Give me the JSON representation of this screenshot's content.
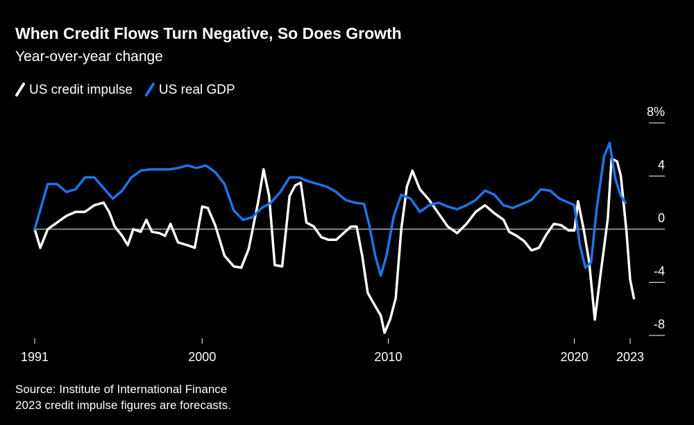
{
  "chart_data": {
    "type": "line",
    "title": "When Credit Flows Turn Negative, So Does Growth",
    "subtitle": "Year-over-year change",
    "source": "Source: Institute of International Finance",
    "note": "2023 credit impulse figures are forecasts.",
    "xlim": [
      1991,
      2023.2
    ],
    "xticks": [
      1991,
      2000,
      2010,
      2020,
      2023
    ],
    "ylim": [
      -8,
      8
    ],
    "yticks": [
      {
        "value": 8,
        "label": "8%"
      },
      4,
      0,
      -4,
      -8
    ],
    "series": [
      {
        "name": "US credit impulse",
        "color": "#ffffff",
        "x": [
          1991.0,
          1991.3,
          1991.7,
          1992.2,
          1992.7,
          1993.2,
          1993.7,
          1994.2,
          1994.7,
          1995.0,
          1995.3,
          1995.7,
          1996.0,
          1996.3,
          1996.7,
          1997.0,
          1997.3,
          1997.7,
          1998.0,
          1998.3,
          1998.7,
          1999.2,
          1999.6,
          2000.0,
          2000.3,
          2000.7,
          2001.2,
          2001.7,
          2002.1,
          2002.5,
          2003.0,
          2003.3,
          2003.6,
          2003.9,
          2004.3,
          2004.7,
          2005.0,
          2005.3,
          2005.6,
          2006.0,
          2006.4,
          2006.8,
          2007.2,
          2007.6,
          2008.0,
          2008.3,
          2008.6,
          2008.9,
          2009.3,
          2009.6,
          2009.8,
          2010.1,
          2010.4,
          2010.7,
          2011.0,
          2011.3,
          2011.7,
          2012.2,
          2012.7,
          2013.2,
          2013.7,
          2014.2,
          2014.7,
          2015.2,
          2015.7,
          2016.2,
          2016.5,
          2016.9,
          2017.3,
          2017.7,
          2018.1,
          2018.5,
          2018.9,
          2019.3,
          2019.7,
          2020.0,
          2020.2,
          2020.5,
          2020.8,
          2021.1,
          2021.4,
          2021.8,
          2022.0,
          2022.3,
          2022.5,
          2022.8,
          2023.0,
          2023.2
        ],
        "values": [
          0,
          -1.4,
          0,
          0.5,
          1.0,
          1.3,
          1.3,
          1.8,
          2.0,
          1.3,
          0.2,
          -0.5,
          -1.2,
          0,
          -0.2,
          0.7,
          -0.2,
          -0.3,
          -0.5,
          0.4,
          -1.0,
          -1.2,
          -1.4,
          1.7,
          1.6,
          0.3,
          -2.0,
          -2.8,
          -2.9,
          -1.5,
          2.0,
          4.5,
          2.5,
          -2.7,
          -2.8,
          2.5,
          3.3,
          3.5,
          0.5,
          0.2,
          -0.6,
          -0.8,
          -0.8,
          -0.3,
          0.2,
          0.2,
          -2.0,
          -4.8,
          -5.8,
          -6.5,
          -7.8,
          -6.8,
          -5.2,
          0.0,
          3.2,
          4.4,
          3.0,
          2.2,
          1.2,
          0.2,
          -0.3,
          0.4,
          1.3,
          1.8,
          1.2,
          0.7,
          -0.2,
          -0.5,
          -0.9,
          -1.6,
          -1.4,
          -0.4,
          0.4,
          0.3,
          -0.1,
          -0.1,
          2.1,
          0,
          -2.5,
          -6.8,
          -3.5,
          0.8,
          5.3,
          5.1,
          4.0,
          -0.1,
          -3.8,
          -5.2
        ]
      },
      {
        "name": "US real GDP",
        "color": "#1f74e8",
        "x": [
          1991.0,
          1991.7,
          1992.2,
          1992.7,
          1993.2,
          1993.7,
          1994.2,
          1994.7,
          1995.2,
          1995.7,
          1996.2,
          1996.7,
          1997.2,
          1997.7,
          1998.2,
          1998.7,
          1999.2,
          1999.7,
          2000.2,
          2000.7,
          2001.2,
          2001.7,
          2002.2,
          2002.7,
          2003.2,
          2003.7,
          2004.2,
          2004.7,
          2005.2,
          2005.7,
          2006.2,
          2006.7,
          2007.2,
          2007.7,
          2008.2,
          2008.7,
          2009.0,
          2009.3,
          2009.6,
          2009.9,
          2010.3,
          2010.7,
          2011.2,
          2011.7,
          2012.2,
          2012.7,
          2013.2,
          2013.7,
          2014.2,
          2014.7,
          2015.2,
          2015.7,
          2016.2,
          2016.7,
          2017.2,
          2017.7,
          2018.2,
          2018.7,
          2019.2,
          2019.7,
          2020.0,
          2020.3,
          2020.6,
          2020.9,
          2021.2,
          2021.6,
          2021.9,
          2022.2,
          2022.5,
          2022.75
        ],
        "values": [
          0,
          3.4,
          3.4,
          2.8,
          3.0,
          3.9,
          3.9,
          3.1,
          2.3,
          2.9,
          3.9,
          4.4,
          4.5,
          4.5,
          4.5,
          4.6,
          4.8,
          4.6,
          4.8,
          4.3,
          3.4,
          1.4,
          0.7,
          0.9,
          1.6,
          2.0,
          2.8,
          3.9,
          3.9,
          3.6,
          3.4,
          3.2,
          2.8,
          2.2,
          2.0,
          1.9,
          0.2,
          -2.0,
          -3.5,
          -2.0,
          1.0,
          2.6,
          2.3,
          1.3,
          1.8,
          2.0,
          1.7,
          1.5,
          1.8,
          2.2,
          2.9,
          2.6,
          1.8,
          1.6,
          1.9,
          2.2,
          3.0,
          2.9,
          2.3,
          2.0,
          1.8,
          -1.2,
          -2.9,
          -2.5,
          1.5,
          5.5,
          6.5,
          3.8,
          2.5,
          2.0
        ]
      }
    ]
  }
}
